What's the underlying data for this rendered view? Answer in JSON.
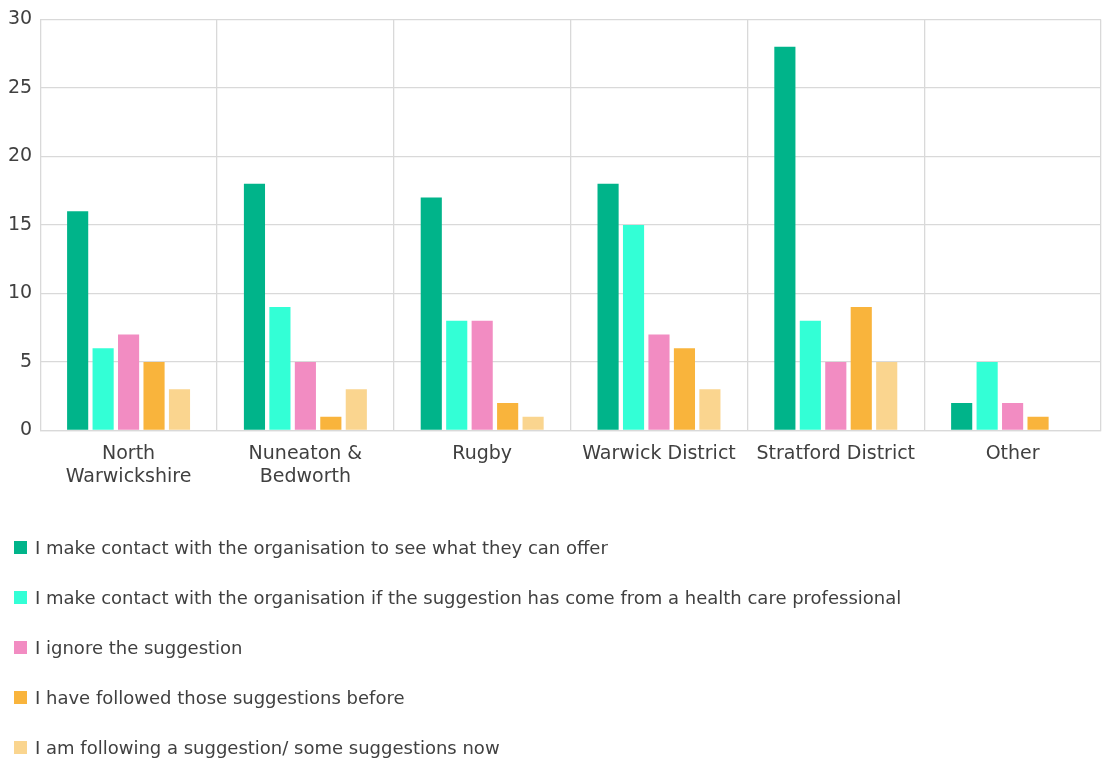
{
  "chart_data": {
    "type": "bar",
    "categories": [
      "North Warwickshire",
      "Nuneaton & Bedworth",
      "Rugby",
      "Warwick District",
      "Stratford District",
      "Other"
    ],
    "series": [
      {
        "name": "I make contact with the organisation to see what they can offer",
        "color": "#00b48a",
        "values": [
          16,
          18,
          17,
          18,
          28,
          2
        ]
      },
      {
        "name": "I make contact with the organisation if the suggestion has come from a health care professional",
        "color": "#33ffd6",
        "values": [
          6,
          9,
          8,
          15,
          8,
          5
        ]
      },
      {
        "name": "I ignore the suggestion",
        "color": "#f28cc2",
        "values": [
          7,
          5,
          8,
          7,
          5,
          2
        ]
      },
      {
        "name": "I have followed those suggestions before",
        "color": "#f9b43c",
        "values": [
          5,
          1,
          2,
          6,
          9,
          1
        ]
      },
      {
        "name": "I am following a suggestion/ some suggestions now",
        "color": "#fad58f",
        "values": [
          3,
          3,
          1,
          3,
          5,
          0
        ]
      }
    ],
    "ylim": [
      0,
      30
    ],
    "yticks": [
      0,
      5,
      10,
      15,
      20,
      25,
      30
    ],
    "grid": true,
    "legend": "bottom"
  }
}
